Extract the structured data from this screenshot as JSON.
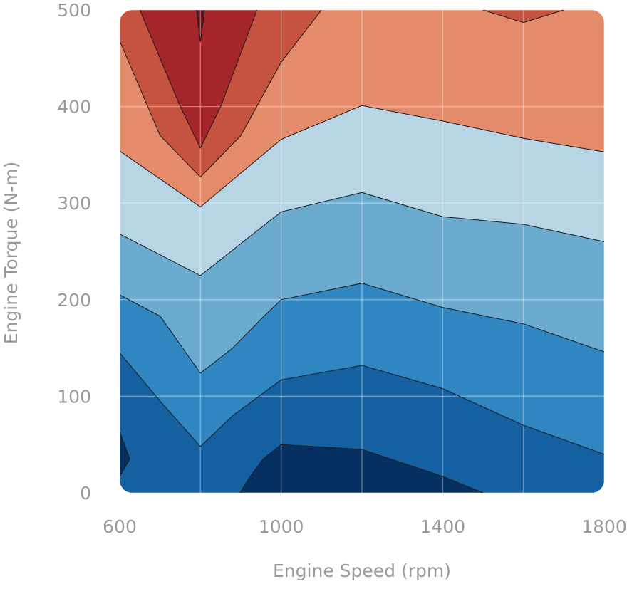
{
  "chart_data": {
    "type": "contour",
    "xlabel": "Engine Speed (rpm)",
    "ylabel": "Engine Torque (N-m)",
    "xlim": [
      600,
      1800
    ],
    "ylim": [
      0,
      500
    ],
    "x_ticks": [
      600,
      1000,
      1400,
      1800
    ],
    "y_ticks": [
      0,
      100,
      200,
      300,
      400,
      500
    ],
    "grid": true,
    "colormap": "RdBu_r",
    "levels": [
      {
        "level": 1,
        "color": "#053061"
      },
      {
        "level": 2,
        "color": "#1460a0"
      },
      {
        "level": 3,
        "color": "#2f86c0"
      },
      {
        "level": 4,
        "color": "#6aabcf"
      },
      {
        "level": 5,
        "color": "#b7d5e5"
      },
      {
        "level": 6,
        "color": "#e48b6c"
      },
      {
        "level": 7,
        "color": "#c5533f"
      },
      {
        "level": 8,
        "color": "#a5262a"
      },
      {
        "level": 9,
        "color": "#67111f"
      }
    ],
    "contour_lines": [
      {
        "from_level": 1,
        "to_level": 2,
        "points": [
          [
            898,
            0
          ],
          [
            920,
            15
          ],
          [
            955,
            35
          ],
          [
            1000,
            50
          ],
          [
            1200,
            45
          ],
          [
            1400,
            17
          ],
          [
            1500,
            0
          ]
        ]
      },
      {
        "from_level": 2,
        "to_level": 3,
        "points": [
          [
            600,
            145
          ],
          [
            700,
            95
          ],
          [
            800,
            48
          ],
          [
            880,
            80
          ],
          [
            1000,
            117
          ],
          [
            1200,
            132
          ],
          [
            1400,
            108
          ],
          [
            1600,
            70
          ],
          [
            1800,
            40
          ]
        ]
      },
      {
        "from_level": 3,
        "to_level": 4,
        "points": [
          [
            600,
            205
          ],
          [
            700,
            183
          ],
          [
            800,
            124
          ],
          [
            880,
            150
          ],
          [
            960,
            184
          ],
          [
            1000,
            200
          ],
          [
            1200,
            217
          ],
          [
            1400,
            192
          ],
          [
            1600,
            175
          ],
          [
            1800,
            146
          ]
        ]
      },
      {
        "from_level": 4,
        "to_level": 5,
        "points": [
          [
            600,
            268
          ],
          [
            800,
            225
          ],
          [
            1000,
            291
          ],
          [
            1200,
            311
          ],
          [
            1400,
            286
          ],
          [
            1600,
            278
          ],
          [
            1800,
            260
          ]
        ]
      },
      {
        "from_level": 5,
        "to_level": 6,
        "points": [
          [
            600,
            354
          ],
          [
            800,
            296
          ],
          [
            1000,
            366
          ],
          [
            1200,
            401
          ],
          [
            1400,
            385
          ],
          [
            1600,
            367
          ],
          [
            1800,
            353
          ]
        ]
      },
      {
        "from_level": 6,
        "to_level": 7,
        "points": [
          [
            600,
            468
          ],
          [
            700,
            370
          ],
          [
            800,
            327
          ],
          [
            900,
            370
          ],
          [
            1000,
            446
          ],
          [
            1100,
            500
          ]
        ]
      },
      {
        "from_level": 7,
        "to_level": 8,
        "points": [
          [
            650,
            500
          ],
          [
            750,
            400
          ],
          [
            800,
            357
          ],
          [
            850,
            400
          ],
          [
            940,
            500
          ]
        ]
      },
      {
        "from_level": 8,
        "to_level": 9,
        "points": [
          [
            790,
            500
          ],
          [
            800,
            467
          ],
          [
            810,
            500
          ]
        ]
      },
      {
        "from_level": 6,
        "to_level": 7,
        "points": [
          [
            1500,
            500
          ],
          [
            1600,
            487
          ],
          [
            1700,
            500
          ]
        ]
      }
    ],
    "local_minimum_region": {
      "level": 1,
      "points": [
        [
          600,
          63
        ],
        [
          625,
          35
        ],
        [
          600,
          17
        ]
      ]
    }
  }
}
